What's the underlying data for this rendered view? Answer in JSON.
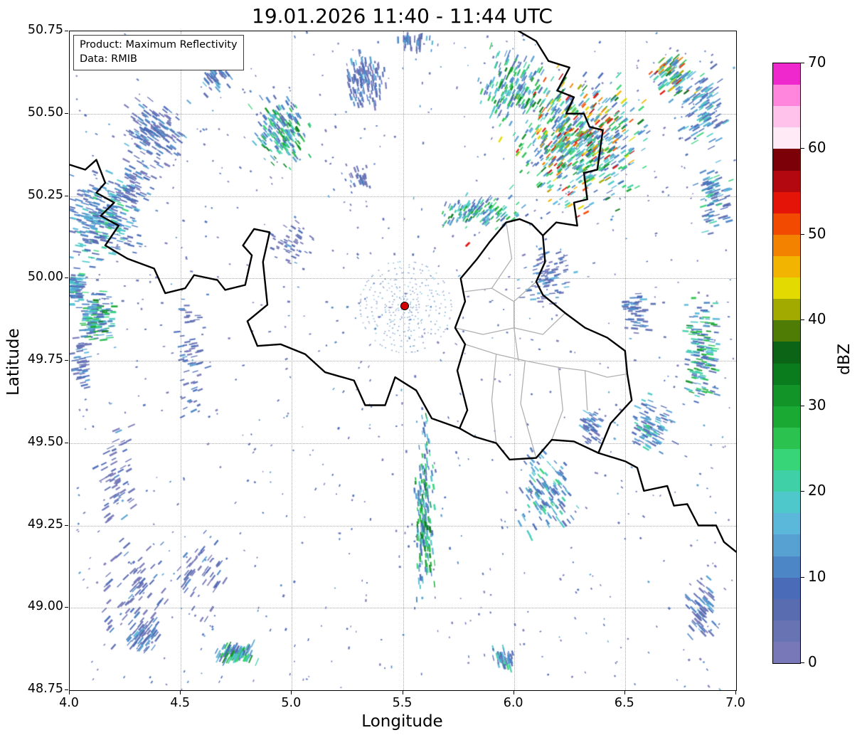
{
  "title": "19.01.2026 11:40 - 11:44 UTC",
  "info_box": {
    "product": "Product: Maximum Reflectivity",
    "source": "Data: RMIB"
  },
  "axes": {
    "xlabel": "Longitude",
    "ylabel": "Latitude",
    "xlim": [
      4.0,
      7.0
    ],
    "ylim": [
      48.75,
      50.75
    ],
    "xticks": [
      "4.0",
      "4.5",
      "5.0",
      "5.5",
      "6.0",
      "6.5",
      "7.0"
    ],
    "yticks": [
      "50.75",
      "50.50",
      "50.25",
      "50.00",
      "49.75",
      "49.50",
      "49.25",
      "49.00",
      "48.75"
    ],
    "grid": true
  },
  "colorbar": {
    "label": "dBZ",
    "min": 0,
    "max": 70,
    "step": 2.5,
    "ticks": [
      0,
      10,
      20,
      30,
      40,
      50,
      60,
      70
    ],
    "colors": [
      "#7878b8",
      "#6873b4",
      "#5a6cb0",
      "#4a6cb8",
      "#4c86c6",
      "#56a0d2",
      "#5cb8da",
      "#4ec8ca",
      "#40d0a8",
      "#38d478",
      "#2cc250",
      "#1aaa34",
      "#129428",
      "#0a7c1e",
      "#0c6416",
      "#4e7c04",
      "#a2aa00",
      "#e2da00",
      "#f2b400",
      "#f28200",
      "#f24a00",
      "#e41408",
      "#b40810",
      "#7c0008",
      "#ffeaf6",
      "#ffc2ea",
      "#ff86dc",
      "#ee28cc"
    ]
  },
  "radar_site": {
    "lon": 5.51,
    "lat": 49.915,
    "marker_color": "#d40000"
  },
  "chart_data": {
    "type": "heatmap",
    "quantity": "maximum reflectivity (dBZ)",
    "palettes": {
      "faint": [
        [
          0,
          6
        ],
        [
          1,
          5
        ],
        [
          2,
          4
        ],
        [
          3,
          3
        ],
        [
          4,
          2
        ],
        [
          5,
          1
        ]
      ],
      "low": [
        [
          0,
          3
        ],
        [
          1,
          3
        ],
        [
          2,
          4
        ],
        [
          3,
          4
        ],
        [
          4,
          3
        ],
        [
          5,
          2
        ],
        [
          6,
          1
        ]
      ],
      "lowplus": [
        [
          1,
          2
        ],
        [
          2,
          3
        ],
        [
          3,
          3
        ],
        [
          4,
          3
        ],
        [
          5,
          2
        ],
        [
          6,
          2
        ],
        [
          7,
          2
        ],
        [
          8,
          1
        ],
        [
          9,
          1
        ]
      ],
      "mid": [
        [
          2,
          2
        ],
        [
          3,
          2
        ],
        [
          4,
          3
        ],
        [
          5,
          2
        ],
        [
          6,
          2
        ],
        [
          7,
          2
        ],
        [
          8,
          2
        ],
        [
          9,
          2
        ],
        [
          10,
          2
        ],
        [
          11,
          1
        ],
        [
          12,
          1
        ],
        [
          13,
          1
        ]
      ],
      "high": [
        [
          3,
          3
        ],
        [
          4,
          3
        ],
        [
          5,
          2
        ],
        [
          6,
          2
        ],
        [
          7,
          2
        ],
        [
          8,
          2
        ],
        [
          9,
          2
        ],
        [
          10,
          2
        ],
        [
          11,
          1
        ],
        [
          12,
          1
        ],
        [
          13,
          1
        ],
        [
          16,
          1
        ],
        [
          17,
          1
        ],
        [
          18,
          1
        ],
        [
          19,
          1
        ],
        [
          20,
          1
        ],
        [
          21,
          1
        ],
        [
          22,
          0.5
        ]
      ],
      "spot": [
        [
          21,
          1
        ],
        [
          26,
          1
        ]
      ]
    },
    "clusters": [
      {
        "lon": 4.15,
        "lat": 50.18,
        "dlon": 0.22,
        "dlat": 0.17,
        "n": 260,
        "pal": "lowplus"
      },
      {
        "lon": 4.03,
        "lat": 49.97,
        "dlon": 0.05,
        "dlat": 0.07,
        "n": 70,
        "pal": "lowplus"
      },
      {
        "lon": 4.13,
        "lat": 49.88,
        "dlon": 0.1,
        "dlat": 0.1,
        "n": 130,
        "pal": "mid"
      },
      {
        "lon": 4.05,
        "lat": 49.75,
        "dlon": 0.05,
        "dlat": 0.13,
        "n": 50,
        "pal": "low"
      },
      {
        "lon": 4.38,
        "lat": 50.44,
        "dlon": 0.17,
        "dlat": 0.13,
        "n": 150,
        "pal": "low"
      },
      {
        "lon": 4.3,
        "lat": 50.28,
        "dlon": 0.11,
        "dlat": 0.09,
        "n": 60,
        "pal": "low"
      },
      {
        "lon": 4.65,
        "lat": 50.62,
        "dlon": 0.1,
        "dlat": 0.07,
        "n": 50,
        "pal": "low"
      },
      {
        "lon": 4.95,
        "lat": 50.45,
        "dlon": 0.16,
        "dlat": 0.13,
        "n": 190,
        "pal": "mid"
      },
      {
        "lon": 5.33,
        "lat": 50.6,
        "dlon": 0.13,
        "dlat": 0.11,
        "n": 130,
        "pal": "low"
      },
      {
        "lon": 5.55,
        "lat": 50.72,
        "dlon": 0.1,
        "dlat": 0.04,
        "n": 40,
        "pal": "low"
      },
      {
        "lon": 5.3,
        "lat": 50.3,
        "dlon": 0.09,
        "dlat": 0.05,
        "n": 35,
        "pal": "faint"
      },
      {
        "lon": 6.3,
        "lat": 50.42,
        "dlon": 0.38,
        "dlat": 0.26,
        "n": 650,
        "pal": "high"
      },
      {
        "lon": 6.0,
        "lat": 50.58,
        "dlon": 0.2,
        "dlat": 0.14,
        "n": 180,
        "pal": "mid"
      },
      {
        "lon": 6.72,
        "lat": 50.62,
        "dlon": 0.12,
        "dlat": 0.09,
        "n": 90,
        "pal": "high"
      },
      {
        "lon": 6.85,
        "lat": 50.52,
        "dlon": 0.13,
        "dlat": 0.15,
        "n": 100,
        "pal": "lowplus"
      },
      {
        "lon": 6.9,
        "lat": 50.25,
        "dlon": 0.11,
        "dlat": 0.14,
        "n": 80,
        "pal": "lowplus"
      },
      {
        "lon": 5.85,
        "lat": 50.2,
        "dlon": 0.27,
        "dlat": 0.06,
        "n": 160,
        "pal": "mid"
      },
      {
        "lon": 6.15,
        "lat": 50.0,
        "dlon": 0.17,
        "dlat": 0.12,
        "n": 90,
        "pal": "low"
      },
      {
        "lon": 5.79,
        "lat": 50.1,
        "dlon": 0.008,
        "dlat": 0.008,
        "n": 3,
        "pal": "spot"
      },
      {
        "lon": 6.55,
        "lat": 49.9,
        "dlon": 0.09,
        "dlat": 0.09,
        "n": 50,
        "pal": "low"
      },
      {
        "lon": 6.85,
        "lat": 49.78,
        "dlon": 0.12,
        "dlat": 0.2,
        "n": 130,
        "pal": "mid"
      },
      {
        "lon": 6.62,
        "lat": 49.55,
        "dlon": 0.12,
        "dlat": 0.12,
        "n": 90,
        "pal": "lowplus"
      },
      {
        "lon": 6.35,
        "lat": 49.55,
        "dlon": 0.07,
        "dlat": 0.07,
        "n": 45,
        "pal": "low"
      },
      {
        "lon": 5.6,
        "lat": 49.3,
        "dlon": 0.06,
        "dlat": 0.36,
        "n": 220,
        "pal": "mid"
      },
      {
        "lon": 6.15,
        "lat": 49.35,
        "dlon": 0.17,
        "dlat": 0.17,
        "n": 130,
        "pal": "lowplus"
      },
      {
        "lon": 6.85,
        "lat": 49.0,
        "dlon": 0.09,
        "dlat": 0.11,
        "n": 60,
        "pal": "low"
      },
      {
        "lon": 5.95,
        "lat": 48.85,
        "dlon": 0.07,
        "dlat": 0.05,
        "n": 40,
        "pal": "lowplus"
      },
      {
        "lon": 4.75,
        "lat": 48.86,
        "dlon": 0.12,
        "dlat": 0.04,
        "n": 90,
        "pal": "mid"
      },
      {
        "lon": 4.33,
        "lat": 48.92,
        "dlon": 0.11,
        "dlat": 0.07,
        "n": 50,
        "pal": "low"
      },
      {
        "lon": 4.3,
        "lat": 49.05,
        "dlon": 0.22,
        "dlat": 0.22,
        "n": 70,
        "pal": "faint"
      },
      {
        "lon": 4.6,
        "lat": 49.1,
        "dlon": 0.18,
        "dlat": 0.18,
        "n": 50,
        "pal": "faint"
      },
      {
        "lon": 4.2,
        "lat": 49.4,
        "dlon": 0.13,
        "dlat": 0.25,
        "n": 60,
        "pal": "faint"
      },
      {
        "lon": 5.0,
        "lat": 50.1,
        "dlon": 0.13,
        "dlat": 0.08,
        "n": 45,
        "pal": "faint"
      },
      {
        "lon": 4.55,
        "lat": 49.75,
        "dlon": 0.09,
        "dlat": 0.25,
        "n": 60,
        "pal": "faint"
      }
    ],
    "background_speckle": {
      "n": 900,
      "pal": "faint"
    },
    "clutter_rings": {
      "radii": [
        7,
        11,
        15,
        19,
        24,
        29,
        35,
        41,
        48,
        56,
        64
      ],
      "colors": [
        "#8e9cc4",
        "#7b93c4",
        "#6d9fcc",
        "#a2b0d2",
        "#5e87b8",
        "#74c0d8"
      ],
      "density": 0.5,
      "scatter_n": 70
    },
    "borders": {
      "black": [
        "4.00,50.345 4.07,50.33 4.12,50.36 4.16,50.29 4.12,50.26 4.20,50.23 4.14,50.19 4.22,50.16 4.16,50.10 4.26,50.06 4.38,50.03 4.43,49.955 4.52,49.97 4.56,50.01 4.665,49.995 4.70,49.965 4.79,49.98 4.82,50.07 4.78,50.10 4.83,50.15 4.90,50.14 4.87,50.05 4.89,49.92 4.80,49.87 4.845,49.795 4.95,49.80 5.06,49.77 5.15,49.715 5.28,49.69 5.33,49.615 5.42,49.615 5.465,49.70 5.56,49.66 5.63,49.575 5.755,49.545",
        "5.755,49.545 5.79,49.60 5.745,49.72 5.78,49.80 5.735,49.85 5.78,49.93 5.76,50.00 5.835,50.06 5.89,50.11 5.965,50.17 6.025,50.18",
        "6.01,50.755 6.10,50.72 6.155,50.66 6.25,50.64 6.195,50.57 6.27,50.55 6.235,50.50 6.315,50.50 6.34,50.46 6.40,50.45 6.375,50.33 6.315,50.32 6.33,50.24 6.27,50.23 6.285,50.16 6.19,50.17 6.13,50.13 6.08,50.165 6.025,50.18",
        "6.13,50.13 6.14,50.05 6.10,49.99 6.13,49.95 6.23,49.895 6.32,49.85 6.42,49.82 6.50,49.78 6.51,49.71 6.53,49.63 6.435,49.56 6.38,49.47",
        "6.38,49.47 6.27,49.505 6.17,49.51 6.10,49.455 5.98,49.45 5.92,49.50 5.82,49.52 5.755,49.545",
        "6.38,49.47 6.50,49.445 6.555,49.425 6.585,49.355 6.69,49.37 6.72,49.31 6.78,49.315 6.83,49.25 6.91,49.25 6.945,49.20 7.00,49.17"
      ],
      "gray": [
        "5.78,49.96 5.90,49.97 6.00,49.93 6.10,49.99",
        "5.965,50.17 5.99,50.06 5.90,49.97",
        "5.735,49.85 5.86,49.83 6.00,49.85 6.13,49.83 6.23,49.895",
        "6.00,49.93 6.00,49.85",
        "5.78,49.80 5.92,49.77 6.05,49.75 6.20,49.73 6.32,49.72 6.42,49.70 6.51,49.71",
        "6.00,49.85 6.02,49.75",
        "6.20,49.73 6.22,49.60 6.17,49.51",
        "5.92,49.77 5.90,49.63 5.92,49.50",
        "6.32,49.72 6.33,49.60",
        "6.05,49.75 6.03,49.62 6.10,49.455"
      ]
    }
  }
}
